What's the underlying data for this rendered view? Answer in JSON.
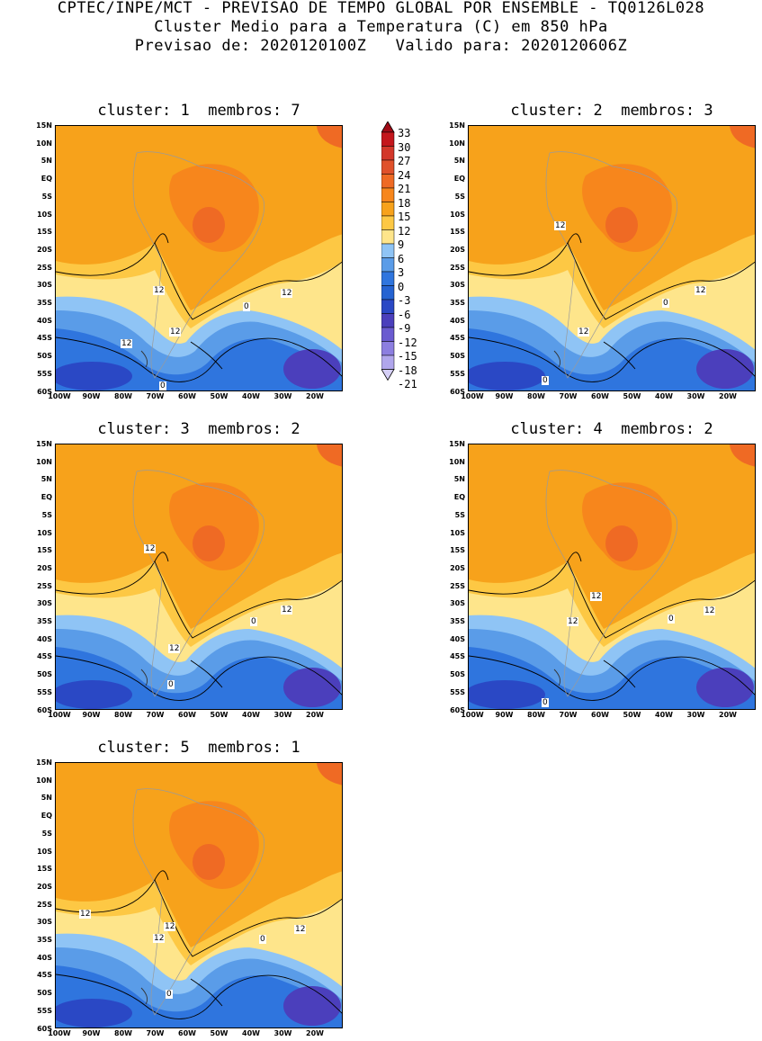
{
  "header": {
    "line1": "CPTEC/INPE/MCT - PREVISAO DE TEMPO GLOBAL POR ENSEMBLE - TQ0126L028",
    "line2": "Cluster Medio para a Temperatura (C) em 850 hPa",
    "line3": "Previsao de: 2020120100Z   Valido para: 2020120606Z"
  },
  "lat_labels": [
    "15N",
    "10N",
    "5N",
    "EQ",
    "5S",
    "10S",
    "15S",
    "20S",
    "25S",
    "30S",
    "35S",
    "40S",
    "45S",
    "50S",
    "55S",
    "60S"
  ],
  "lon_labels": [
    "100W",
    "90W",
    "80W",
    "70W",
    "60W",
    "50W",
    "40W",
    "30W",
    "20W"
  ],
  "colorbar": {
    "levels": [
      "33",
      "30",
      "27",
      "24",
      "21",
      "18",
      "15",
      "12",
      "9",
      "6",
      "3",
      "0",
      "-3",
      "-6",
      "-9",
      "-12",
      "-15",
      "-18",
      "-21"
    ],
    "colors": [
      "#a00b16",
      "#c4161c",
      "#d3372a",
      "#e0512b",
      "#ef6a24",
      "#f7861c",
      "#f7a21b",
      "#fdc844",
      "#fee58b",
      "#8fc4f5",
      "#5a9ce8",
      "#2f75de",
      "#2563d2",
      "#2a48c5",
      "#4b3fbc",
      "#6a5bd0",
      "#8c7ee0",
      "#b0a6ec",
      "#d5cff6"
    ],
    "arrows": [
      "up-triangle-icon",
      "down-triangle-icon"
    ]
  },
  "panels": [
    {
      "title": "cluster: 1  membros: 7",
      "labels": [
        "12",
        "12",
        "12",
        "12",
        "0",
        "0"
      ]
    },
    {
      "title": "cluster: 2  membros: 3",
      "labels": [
        "12",
        "12",
        "12",
        "0",
        "0"
      ]
    },
    {
      "title": "cluster: 3  membros: 2",
      "labels": [
        "12",
        "12",
        "12",
        "0",
        "0"
      ]
    },
    {
      "title": "cluster: 4  membros: 2",
      "labels": [
        "12",
        "12",
        "12",
        "0",
        "0"
      ]
    },
    {
      "title": "cluster: 5  membros: 1",
      "labels": [
        "12",
        "12",
        "12",
        "12",
        "0",
        "0"
      ]
    }
  ]
}
